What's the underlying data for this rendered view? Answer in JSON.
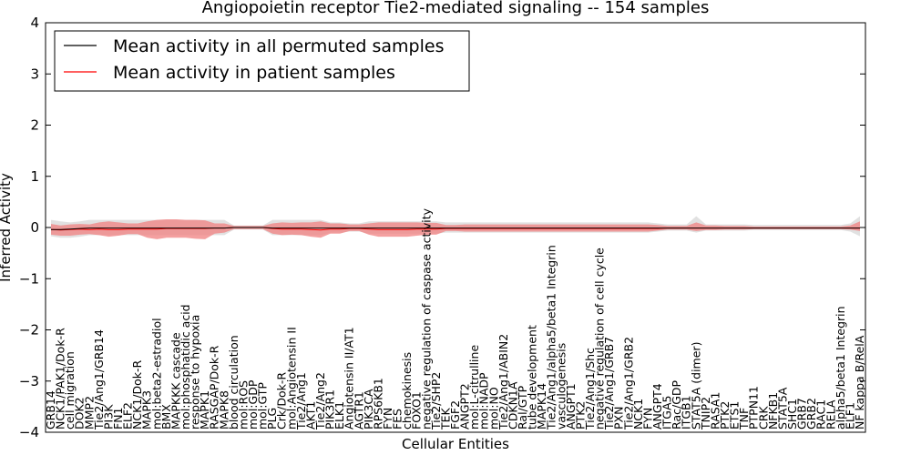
{
  "chart_data": {
    "type": "line",
    "title": "Angiopoietin receptor Tie2-mediated signaling -- 154 samples",
    "xlabel": "Cellular Entities",
    "ylabel": "Inferred Activity",
    "ylim": [
      -4,
      4
    ],
    "yticks": [
      -4,
      -3,
      -2,
      -1,
      0,
      1,
      2,
      3,
      4
    ],
    "ytick_labels": [
      "−4",
      "−3",
      "−2",
      "−1",
      "0",
      "1",
      "2",
      "3",
      "4"
    ],
    "legend_position": "top-left",
    "grid": false,
    "colors": {
      "permuted_line": "#000000",
      "patient_line": "#ff0000",
      "patient_band": "#f08080",
      "permuted_band": "#c8c8c8"
    },
    "categories": [
      "GRB14",
      "NCK1/PAK1/Dok-R",
      "cell migration",
      "DOK2",
      "MMP2",
      "Tie2/Ang1/GRB14",
      "PI3K",
      "FN1",
      "ELF2",
      "NCK1/Dok-R",
      "MAPK3",
      "mol:beta2-estradiol",
      "BMX",
      "MAPKKK cascade",
      "mol:phosphatidic acid",
      "response to hypoxia",
      "MAPK1",
      "RASGAP/Dok-R",
      "MAPK8",
      "blood circulation",
      "mol:ROS",
      "mol:GDP",
      "mol:GTP",
      "PLG",
      "Crk/Dok-R",
      "mol:Angiotensin II",
      "Tie2/Ang1",
      "AKT1",
      "Tie2/Ang2",
      "PIK3R1",
      "ELK1",
      "Angiotensin II/AT1",
      "AGTR1",
      "PIK3CA",
      "RPS6KB1",
      "FYN",
      "FES",
      "chemokinesis",
      "FOXO1",
      "negative regulation of caspase activity",
      "Tie2/SHP2",
      "TEK",
      "FGF2",
      "ANGPT2",
      "mol:L-citrulline",
      "mol:NADP",
      "mol:NO",
      "Tie2/Ang1/ABIN2",
      "CDKN1A",
      "Ral/GTP",
      "tube development",
      "MAPK14",
      "Tie2/Ang1/alpha5/beta1 Integrin",
      "vasculogenesis",
      "ANGPT1",
      "PTK2",
      "Tie2/Ang1/Shc",
      "negative regulation of cell cycle",
      "Tie2/Ang1/GRB7",
      "PXN",
      "Tie2/Ang1/GRB2",
      "NCK1",
      "FYN",
      "ANGPT4",
      "ITGA5",
      "Rac/GDP",
      "ITGB1",
      "STAT5A (dimer)",
      "TNIP2",
      "RASA1",
      "PTK2",
      "ETS1",
      "TNF",
      "PTPN11",
      "CRK",
      "NFKB1",
      "STAT5A",
      "SHC1",
      "GRB7",
      "GRB2",
      "RAC1",
      "RELA",
      "alpha5/beta1 Integrin",
      "ELF1",
      "NF kappa B/RelA"
    ],
    "series": [
      {
        "name": "Mean activity in all permuted samples",
        "values": [
          -0.04,
          -0.04,
          -0.03,
          -0.02,
          -0.01,
          -0.01,
          -0.01,
          -0.01,
          -0.01,
          -0.01,
          -0.01,
          -0.01,
          -0.01,
          -0.01,
          -0.01,
          -0.01,
          -0.01,
          -0.01,
          -0.01,
          0,
          0,
          0,
          0,
          -0.01,
          -0.01,
          -0.01,
          -0.01,
          -0.01,
          -0.01,
          -0.01,
          -0.01,
          -0.01,
          -0.01,
          -0.01,
          -0.01,
          -0.01,
          -0.01,
          -0.01,
          -0.01,
          -0.01,
          -0.01,
          -0.01,
          -0.01,
          -0.01,
          -0.01,
          -0.01,
          -0.01,
          -0.01,
          -0.01,
          -0.01,
          -0.01,
          -0.01,
          -0.01,
          -0.01,
          -0.01,
          -0.01,
          -0.01,
          -0.01,
          -0.01,
          -0.01,
          -0.01,
          -0.01,
          -0.01,
          -0.01,
          -0.01,
          -0.01,
          -0.01,
          -0.01,
          -0.01,
          -0.01,
          -0.01,
          -0.01,
          -0.01,
          -0.01,
          -0.01,
          -0.01,
          -0.01,
          -0.01,
          -0.01,
          -0.01,
          -0.01,
          -0.01,
          -0.01,
          -0.01,
          -0.01
        ],
        "lower": [
          -0.17,
          -0.2,
          -0.2,
          -0.18,
          -0.15,
          -0.15,
          -0.15,
          -0.15,
          -0.15,
          -0.15,
          -0.15,
          -0.15,
          -0.15,
          -0.15,
          -0.15,
          -0.15,
          -0.15,
          -0.15,
          -0.15,
          -0.04,
          -0.04,
          -0.04,
          -0.04,
          -0.15,
          -0.15,
          -0.15,
          -0.15,
          -0.15,
          -0.15,
          -0.1,
          -0.1,
          -0.08,
          -0.08,
          -0.12,
          -0.12,
          -0.12,
          -0.12,
          -0.12,
          -0.12,
          -0.12,
          -0.12,
          -0.1,
          -0.1,
          -0.1,
          -0.1,
          -0.1,
          -0.1,
          -0.1,
          -0.1,
          -0.1,
          -0.1,
          -0.1,
          -0.1,
          -0.1,
          -0.1,
          -0.1,
          -0.1,
          -0.1,
          -0.1,
          -0.1,
          -0.1,
          -0.1,
          -0.1,
          -0.08,
          -0.06,
          -0.06,
          -0.06,
          -0.1,
          -0.06,
          -0.06,
          -0.06,
          -0.06,
          -0.06,
          -0.05,
          -0.05,
          -0.05,
          -0.05,
          -0.05,
          -0.05,
          -0.05,
          -0.05,
          -0.05,
          -0.05,
          -0.08,
          -0.17
        ],
        "upper": [
          0.15,
          0.12,
          0.1,
          0.12,
          0.15,
          0.15,
          0.15,
          0.15,
          0.15,
          0.15,
          0.15,
          0.15,
          0.15,
          0.15,
          0.15,
          0.15,
          0.15,
          0.15,
          0.15,
          0.04,
          0.04,
          0.04,
          0.04,
          0.15,
          0.15,
          0.15,
          0.15,
          0.15,
          0.15,
          0.1,
          0.1,
          0.08,
          0.08,
          0.12,
          0.12,
          0.12,
          0.12,
          0.12,
          0.12,
          0.12,
          0.12,
          0.1,
          0.1,
          0.1,
          0.1,
          0.1,
          0.1,
          0.1,
          0.1,
          0.1,
          0.1,
          0.1,
          0.1,
          0.1,
          0.1,
          0.1,
          0.1,
          0.1,
          0.1,
          0.1,
          0.1,
          0.1,
          0.1,
          0.08,
          0.06,
          0.06,
          0.06,
          0.22,
          0.06,
          0.06,
          0.06,
          0.06,
          0.06,
          0.05,
          0.05,
          0.05,
          0.05,
          0.05,
          0.05,
          0.05,
          0.05,
          0.05,
          0.05,
          0.08,
          0.22
        ]
      },
      {
        "name": "Mean activity in patient samples",
        "values": [
          -0.04,
          -0.05,
          -0.04,
          -0.03,
          -0.04,
          -0.03,
          -0.04,
          -0.04,
          -0.03,
          -0.03,
          -0.03,
          -0.03,
          -0.02,
          -0.02,
          -0.02,
          -0.02,
          -0.02,
          -0.01,
          -0.01,
          0,
          0,
          0,
          0,
          -0.02,
          -0.03,
          -0.03,
          -0.03,
          -0.04,
          -0.05,
          -0.03,
          -0.03,
          -0.02,
          -0.02,
          -0.03,
          -0.04,
          -0.04,
          -0.04,
          -0.04,
          -0.03,
          -0.03,
          -0.03,
          -0.02,
          -0.02,
          -0.02,
          -0.02,
          -0.02,
          -0.02,
          -0.02,
          -0.02,
          -0.02,
          -0.02,
          -0.02,
          -0.02,
          -0.02,
          -0.02,
          -0.02,
          -0.02,
          -0.02,
          -0.02,
          -0.02,
          -0.02,
          -0.02,
          -0.02,
          -0.02,
          -0.01,
          -0.01,
          -0.01,
          -0.01,
          -0.01,
          -0.01,
          -0.01,
          -0.01,
          -0.01,
          -0.01,
          -0.01,
          -0.01,
          -0.01,
          -0.01,
          -0.01,
          -0.01,
          -0.01,
          -0.01,
          -0.01,
          -0.01,
          -0.01
        ],
        "lower": [
          -0.14,
          -0.16,
          -0.16,
          -0.14,
          -0.13,
          -0.15,
          -0.18,
          -0.16,
          -0.13,
          -0.13,
          -0.2,
          -0.23,
          -0.2,
          -0.2,
          -0.2,
          -0.22,
          -0.23,
          -0.12,
          -0.1,
          -0.03,
          -0.03,
          -0.03,
          -0.03,
          -0.12,
          -0.15,
          -0.14,
          -0.15,
          -0.18,
          -0.2,
          -0.12,
          -0.12,
          -0.07,
          -0.07,
          -0.14,
          -0.18,
          -0.18,
          -0.18,
          -0.18,
          -0.16,
          -0.14,
          -0.14,
          -0.07,
          -0.07,
          -0.08,
          -0.08,
          -0.08,
          -0.08,
          -0.08,
          -0.08,
          -0.08,
          -0.08,
          -0.08,
          -0.08,
          -0.08,
          -0.08,
          -0.08,
          -0.08,
          -0.08,
          -0.08,
          -0.08,
          -0.08,
          -0.08,
          -0.08,
          -0.06,
          -0.04,
          -0.04,
          -0.04,
          -0.07,
          -0.05,
          -0.05,
          -0.04,
          -0.04,
          -0.04,
          -0.03,
          -0.03,
          -0.03,
          -0.03,
          -0.03,
          -0.03,
          -0.03,
          -0.03,
          -0.03,
          -0.03,
          -0.04,
          -0.07
        ],
        "upper": [
          0.07,
          0.04,
          0.06,
          0.07,
          0.06,
          0.1,
          0.12,
          0.1,
          0.08,
          0.08,
          0.12,
          0.15,
          0.16,
          0.16,
          0.15,
          0.15,
          0.14,
          0.08,
          0.08,
          0.03,
          0.03,
          0.03,
          0.03,
          0.08,
          0.1,
          0.09,
          0.1,
          0.1,
          0.12,
          0.08,
          0.08,
          0.06,
          0.06,
          0.08,
          0.1,
          0.1,
          0.1,
          0.1,
          0.1,
          0.09,
          0.09,
          0.05,
          0.05,
          0.06,
          0.06,
          0.06,
          0.06,
          0.06,
          0.06,
          0.06,
          0.06,
          0.06,
          0.06,
          0.06,
          0.06,
          0.06,
          0.06,
          0.06,
          0.06,
          0.06,
          0.06,
          0.06,
          0.06,
          0.05,
          0.03,
          0.03,
          0.03,
          0.1,
          0.04,
          0.04,
          0.03,
          0.03,
          0.03,
          0.02,
          0.02,
          0.02,
          0.02,
          0.02,
          0.02,
          0.02,
          0.02,
          0.02,
          0.02,
          0.04,
          0.12
        ]
      }
    ]
  }
}
